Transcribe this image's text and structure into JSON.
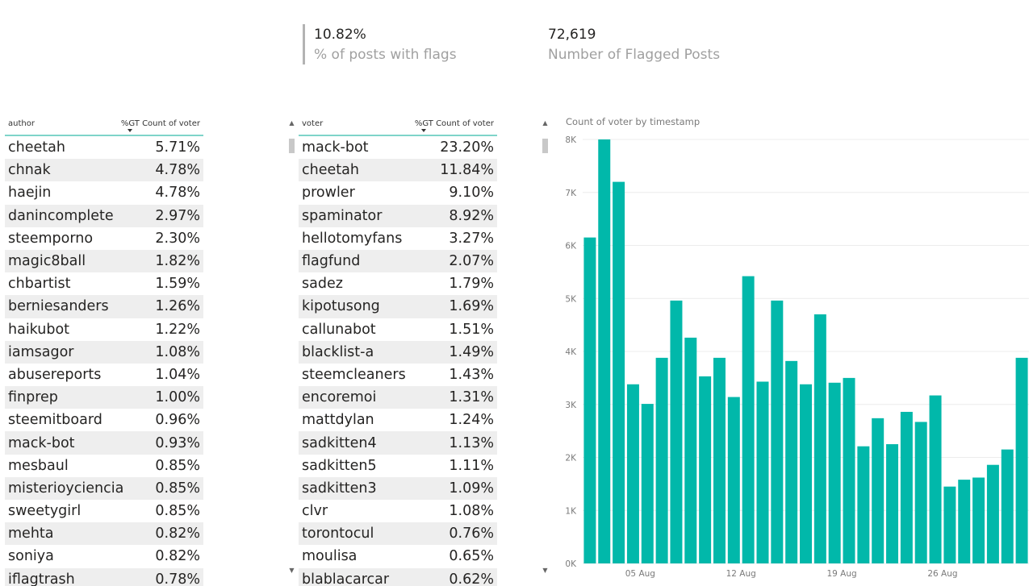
{
  "kpis": {
    "pct_flags": {
      "value": "10.82%",
      "label": "% of posts with flags"
    },
    "flagged": {
      "value": "72,619",
      "label": "Number of Flagged Posts"
    }
  },
  "author_table": {
    "col1": "author",
    "col2": "%GT Count of voter",
    "rows": [
      {
        "name": "cheetah",
        "pct": "5.71%"
      },
      {
        "name": "chnak",
        "pct": "4.78%"
      },
      {
        "name": "haejin",
        "pct": "4.78%"
      },
      {
        "name": "danincomplete",
        "pct": "2.97%"
      },
      {
        "name": "steemporno",
        "pct": "2.30%"
      },
      {
        "name": "magic8ball",
        "pct": "1.82%"
      },
      {
        "name": "chbartist",
        "pct": "1.59%"
      },
      {
        "name": "berniesanders",
        "pct": "1.26%"
      },
      {
        "name": "haikubot",
        "pct": "1.22%"
      },
      {
        "name": "iamsagor",
        "pct": "1.08%"
      },
      {
        "name": "abusereports",
        "pct": "1.04%"
      },
      {
        "name": "finprep",
        "pct": "1.00%"
      },
      {
        "name": "steemitboard",
        "pct": "0.96%"
      },
      {
        "name": "mack-bot",
        "pct": "0.93%"
      },
      {
        "name": "mesbaul",
        "pct": "0.85%"
      },
      {
        "name": "misterioyciencia",
        "pct": "0.85%"
      },
      {
        "name": "sweetygirl",
        "pct": "0.85%"
      },
      {
        "name": "mehta",
        "pct": "0.82%"
      },
      {
        "name": "soniya",
        "pct": "0.82%"
      },
      {
        "name": "iflagtrash",
        "pct": "0.78%"
      }
    ]
  },
  "voter_table": {
    "col1": "voter",
    "col2": "%GT Count of voter",
    "rows": [
      {
        "name": "mack-bot",
        "pct": "23.20%"
      },
      {
        "name": "cheetah",
        "pct": "11.84%"
      },
      {
        "name": "prowler",
        "pct": "9.10%"
      },
      {
        "name": "spaminator",
        "pct": "8.92%"
      },
      {
        "name": "hellotomyfans",
        "pct": "3.27%"
      },
      {
        "name": "flagfund",
        "pct": "2.07%"
      },
      {
        "name": "sadez",
        "pct": "1.79%"
      },
      {
        "name": "kipotusong",
        "pct": "1.69%"
      },
      {
        "name": "callunabot",
        "pct": "1.51%"
      },
      {
        "name": "blacklist-a",
        "pct": "1.49%"
      },
      {
        "name": "steemcleaners",
        "pct": "1.43%"
      },
      {
        "name": "encoremoi",
        "pct": "1.31%"
      },
      {
        "name": "mattdylan",
        "pct": "1.24%"
      },
      {
        "name": "sadkitten4",
        "pct": "1.13%"
      },
      {
        "name": "sadkitten5",
        "pct": "1.11%"
      },
      {
        "name": "sadkitten3",
        "pct": "1.09%"
      },
      {
        "name": "clvr",
        "pct": "1.08%"
      },
      {
        "name": "torontocul",
        "pct": "0.76%"
      },
      {
        "name": "moulisa",
        "pct": "0.65%"
      },
      {
        "name": "blablacarcar",
        "pct": "0.62%"
      }
    ]
  },
  "chart_data": {
    "type": "bar",
    "title": "Count of voter by timestamp",
    "color": "#01b8aa",
    "ylim": [
      0,
      8000
    ],
    "yticks": [
      "0K",
      "1K",
      "2K",
      "3K",
      "4K",
      "5K",
      "6K",
      "7K",
      "8K"
    ],
    "xticks": [
      {
        "label": "05 Aug",
        "index": 3.5
      },
      {
        "label": "12 Aug",
        "index": 10.5
      },
      {
        "label": "19 Aug",
        "index": 17.5
      },
      {
        "label": "26 Aug",
        "index": 24.5
      }
    ],
    "values": [
      6150,
      8000,
      7200,
      3380,
      3010,
      3880,
      4960,
      4260,
      3530,
      3880,
      3140,
      5420,
      3430,
      4960,
      3820,
      3380,
      4700,
      3410,
      3500,
      2210,
      2740,
      2250,
      2860,
      2670,
      3170,
      1450,
      1580,
      1620,
      1860,
      2150,
      3880
    ]
  }
}
